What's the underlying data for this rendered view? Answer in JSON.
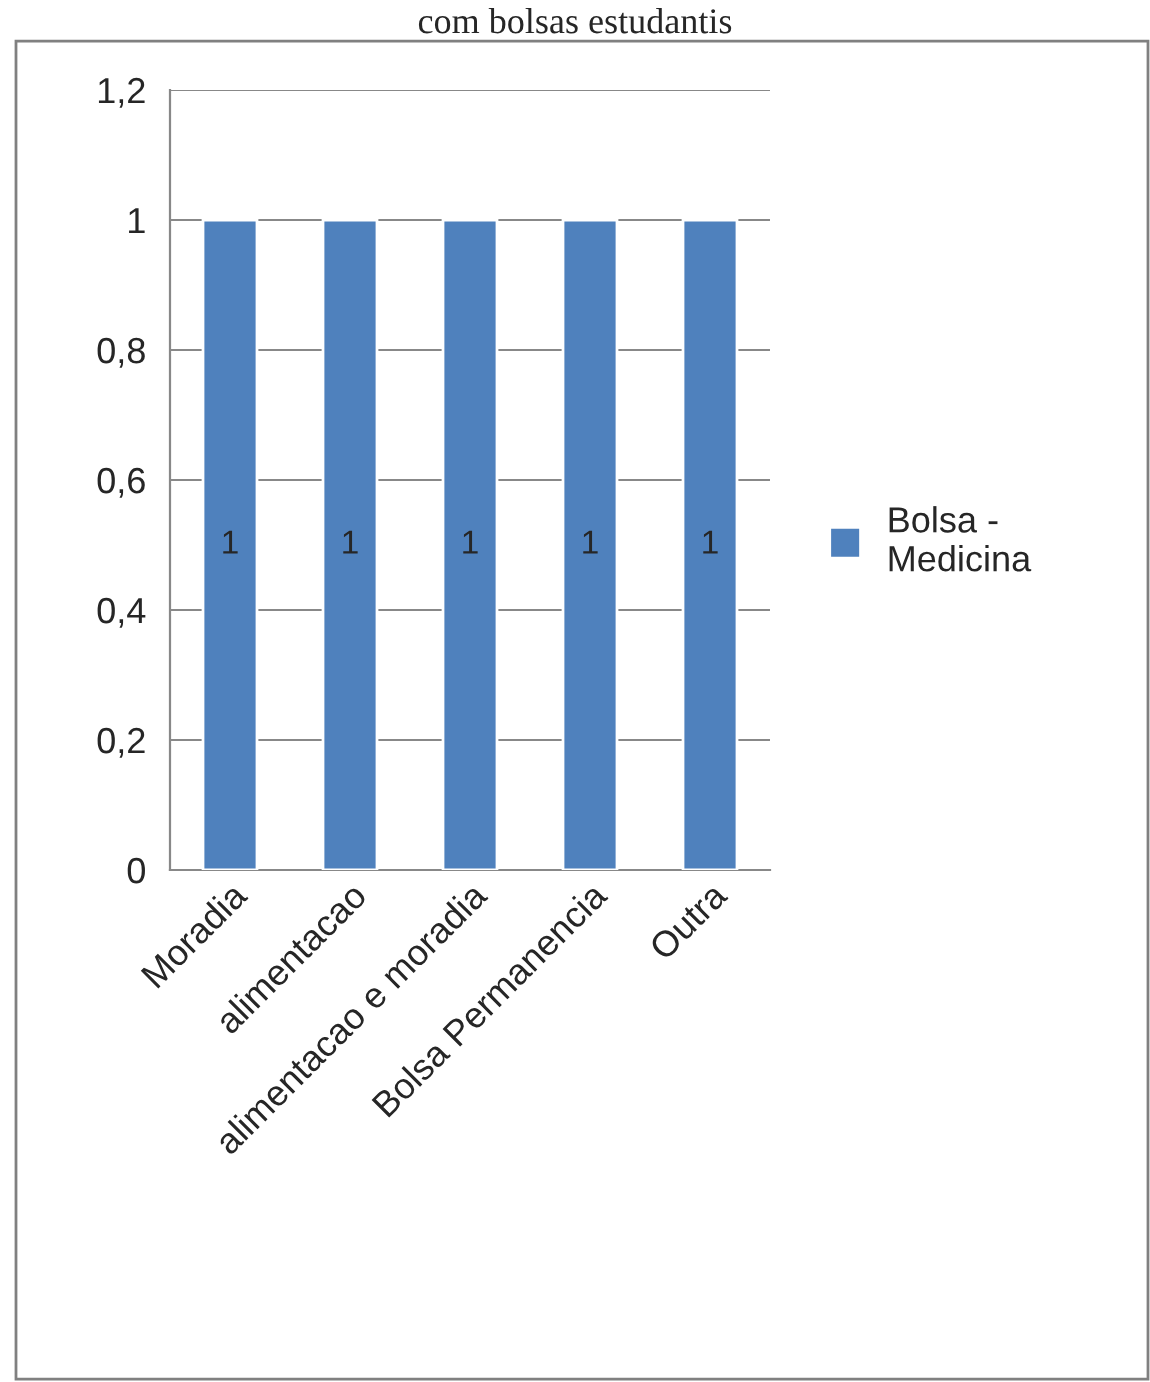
{
  "chart_data": {
    "type": "bar",
    "title": "com bolsas estudantis",
    "categories": [
      "Moradia",
      "alimentacao",
      "alimentacao e moradia",
      "Bolsa Permanencia",
      "Outra"
    ],
    "series": [
      {
        "name": "Bolsa - Medicina",
        "color": "#4f81bd",
        "values": [
          1,
          1,
          1,
          1,
          1
        ]
      }
    ],
    "ylim": [
      0,
      1.2
    ],
    "yticks": [
      {
        "value": 0,
        "label": "0"
      },
      {
        "value": 0.2,
        "label": "0,2"
      },
      {
        "value": 0.4,
        "label": "0,4"
      },
      {
        "value": 0.6,
        "label": "0,6"
      },
      {
        "value": 0.8,
        "label": "0,8"
      },
      {
        "value": 1,
        "label": "1"
      },
      {
        "value": 1.2,
        "label": "1,2"
      }
    ],
    "grid": "y",
    "legend": "right",
    "data_labels": true
  }
}
